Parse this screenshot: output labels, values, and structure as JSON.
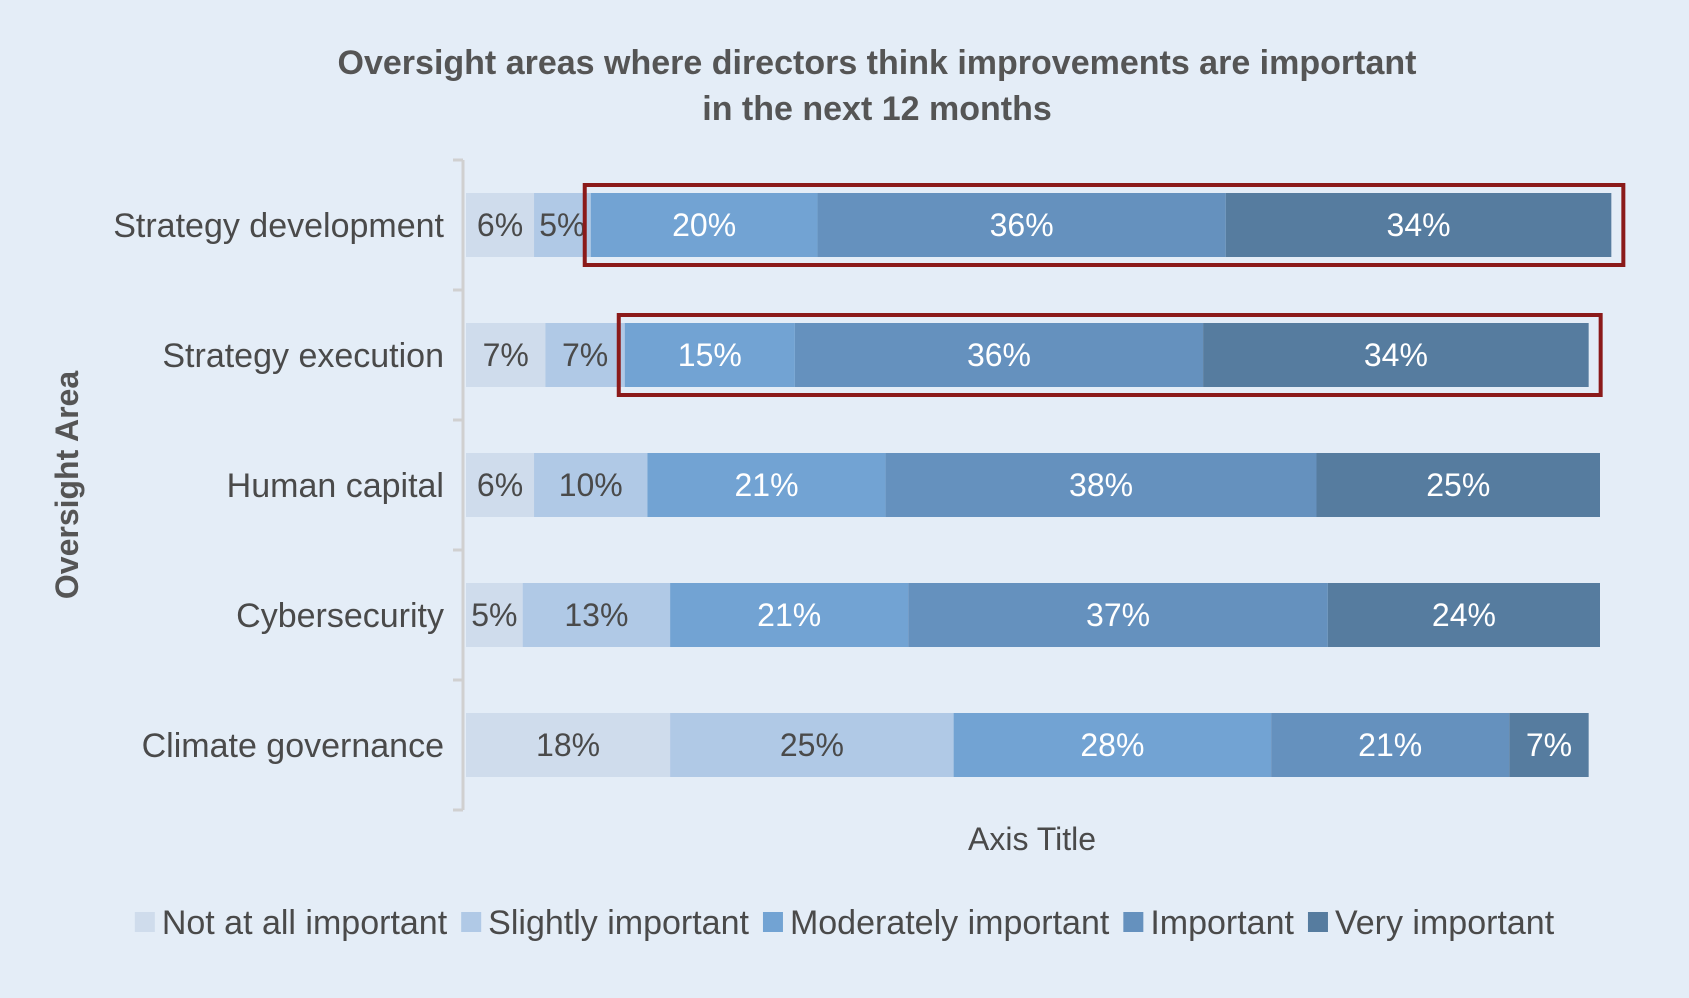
{
  "chart_data": {
    "type": "bar",
    "orientation": "horizontal",
    "stacked": true,
    "title": "Oversight areas where directors think improvements are important in the next 12 months",
    "title_lines": [
      "Oversight areas where directors think improvements are important",
      "in the next 12 months"
    ],
    "xlabel": "Axis Title",
    "ylabel": "Oversight Area",
    "xlim": [
      0,
      100
    ],
    "legend_position": "bottom",
    "grid": false,
    "categories": [
      "Strategy development",
      "Strategy execution",
      "Human capital",
      "Cybersecurity",
      "Climate governance"
    ],
    "series": [
      {
        "name": "Not at all important",
        "color": "#cfdcec",
        "label_color": "#4a4a4a",
        "values": [
          6,
          7,
          6,
          5,
          18
        ],
        "labels": [
          "6%",
          "7%",
          "6%",
          "5%",
          "18%"
        ]
      },
      {
        "name": "Slightly important",
        "color": "#b0c9e6",
        "label_color": "#4a4a4a",
        "values": [
          5,
          7,
          10,
          13,
          25
        ],
        "labels": [
          "5%",
          "7%",
          "10%",
          "13%",
          "25%"
        ]
      },
      {
        "name": "Moderately important",
        "color": "#72a3d3",
        "label_color": "#ffffff",
        "values": [
          20,
          15,
          21,
          21,
          28
        ],
        "labels": [
          "20%",
          "15%",
          "21%",
          "21%",
          "28%"
        ]
      },
      {
        "name": "Important",
        "color": "#6591be",
        "label_color": "#ffffff",
        "values": [
          36,
          36,
          38,
          37,
          21
        ],
        "labels": [
          "36%",
          "36%",
          "38%",
          "37%",
          "21%"
        ]
      },
      {
        "name": "Very important",
        "color": "#567c9f",
        "label_color": "#ffffff",
        "values": [
          34,
          34,
          25,
          24,
          7
        ],
        "labels": [
          "34%",
          "34%",
          "25%",
          "24%",
          "7%"
        ]
      }
    ],
    "highlight_color": "#8b1a1a",
    "highlights": [
      {
        "category": "Strategy development",
        "from_series": "Moderately important"
      },
      {
        "category": "Strategy execution",
        "from_series": "Moderately important"
      }
    ]
  }
}
